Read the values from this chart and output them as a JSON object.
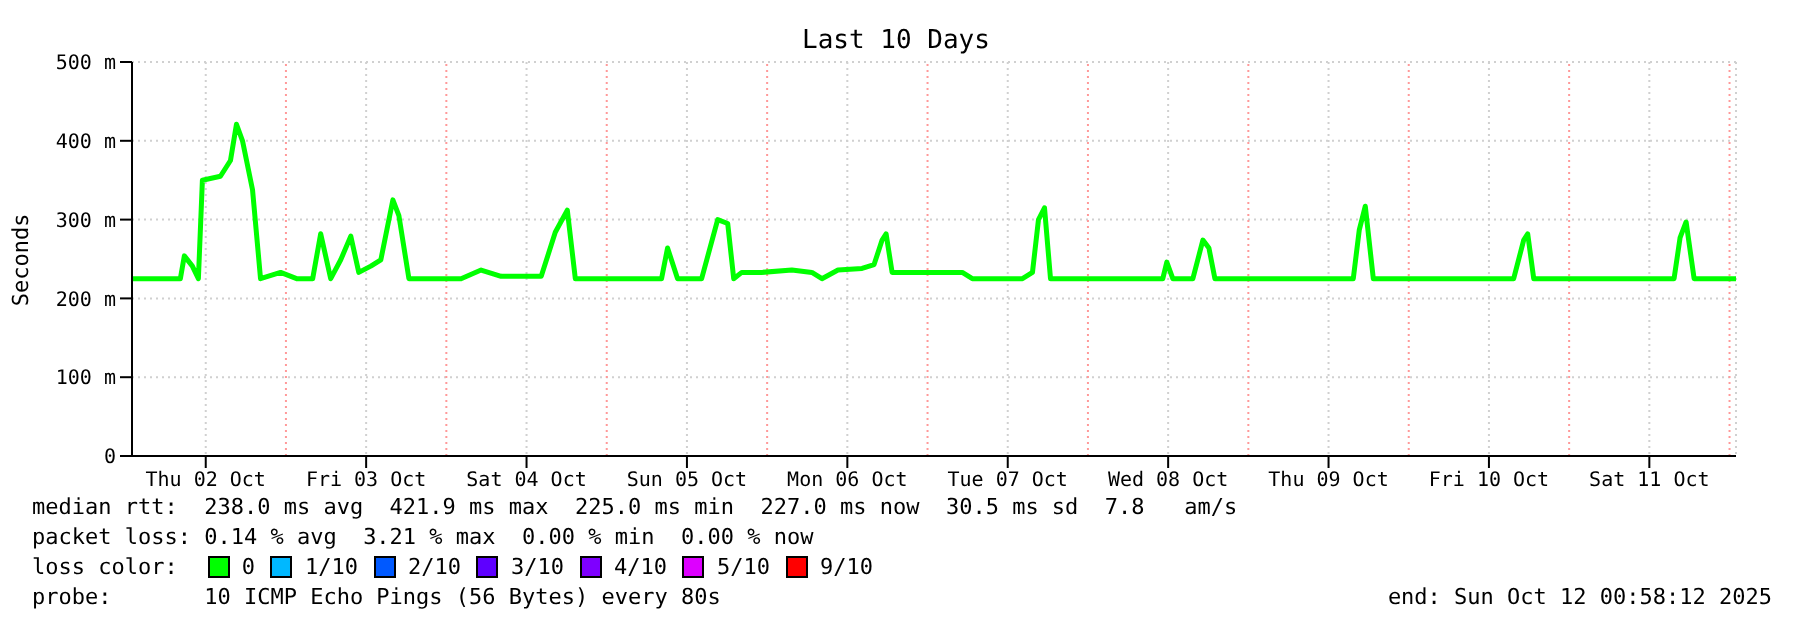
{
  "chart_data": {
    "type": "line",
    "title": "Last 10 Days",
    "ylabel": "Seconds",
    "x": [
      "2025-10-02T00:58",
      "2025-10-02T08:12",
      "2025-10-02T08:48",
      "2025-10-02T10:00",
      "2025-10-02T10:54",
      "2025-10-02T11:30",
      "2025-10-02T14:12",
      "2025-10-02T15:42",
      "2025-10-02T16:36",
      "2025-10-02T17:30",
      "2025-10-02T19:00",
      "2025-10-02T20:12",
      "2025-10-02T23:12",
      "2025-10-03T01:36",
      "2025-10-03T04:00",
      "2025-10-03T05:12",
      "2025-10-03T06:42",
      "2025-10-03T08:12",
      "2025-10-03T09:42",
      "2025-10-03T10:54",
      "2025-10-03T12:42",
      "2025-10-03T14:12",
      "2025-10-03T16:00",
      "2025-10-03T16:54",
      "2025-10-03T18:24",
      "2025-10-04T02:12",
      "2025-10-04T05:12",
      "2025-10-04T08:12",
      "2025-10-04T14:12",
      "2025-10-04T16:18",
      "2025-10-04T18:06",
      "2025-10-04T19:18",
      "2025-10-05T02:12",
      "2025-10-05T08:12",
      "2025-10-05T09:06",
      "2025-10-05T10:36",
      "2025-10-05T14:12",
      "2025-10-05T16:36",
      "2025-10-05T18:06",
      "2025-10-05T19:00",
      "2025-10-05T20:12",
      "2025-10-05T23:12",
      "2025-10-06T03:42",
      "2025-10-06T06:42",
      "2025-10-06T08:12",
      "2025-10-06T10:36",
      "2025-10-06T14:12",
      "2025-10-06T16:00",
      "2025-10-06T17:12",
      "2025-10-06T17:48",
      "2025-10-06T18:42",
      "2025-10-07T05:12",
      "2025-10-07T06:42",
      "2025-10-07T14:12",
      "2025-10-07T15:42",
      "2025-10-07T16:36",
      "2025-10-07T17:30",
      "2025-10-07T18:24",
      "2025-10-08T11:12",
      "2025-10-08T11:48",
      "2025-10-08T12:42",
      "2025-10-08T15:42",
      "2025-10-08T17:12",
      "2025-10-08T18:06",
      "2025-10-08T19:00",
      "2025-10-09T15:42",
      "2025-10-09T16:36",
      "2025-10-09T17:30",
      "2025-10-09T18:42",
      "2025-10-10T15:42",
      "2025-10-10T17:12",
      "2025-10-10T17:48",
      "2025-10-10T18:42",
      "2025-10-11T15:42",
      "2025-10-11T16:36",
      "2025-10-11T17:30",
      "2025-10-11T18:42",
      "2025-10-12T00:58"
    ],
    "series": [
      {
        "color": "#00ff00",
        "values": [
          225,
          225,
          254,
          241,
          225,
          350,
          355,
          375,
          421,
          400,
          338,
          225,
          233,
          225,
          225,
          282,
          225,
          249,
          279,
          233,
          241,
          249,
          325,
          305,
          225,
          225,
          236,
          228,
          228,
          284,
          312,
          225,
          225,
          225,
          264,
          225,
          225,
          300,
          295,
          225,
          233,
          233,
          236,
          233,
          225,
          236,
          238,
          243,
          274,
          282,
          233,
          233,
          225,
          225,
          233,
          300,
          315,
          225,
          225,
          246,
          225,
          225,
          274,
          264,
          225,
          225,
          287,
          317,
          225,
          225,
          274,
          282,
          225,
          225,
          277,
          297,
          225,
          225
        ]
      }
    ],
    "xlim": [
      "2025-10-02T00:58",
      "2025-10-12T00:58"
    ],
    "xticks": [
      {
        "value": "2025-10-02T12:00",
        "label": "Thu 02 Oct"
      },
      {
        "value": "2025-10-03T12:00",
        "label": "Fri 03 Oct"
      },
      {
        "value": "2025-10-04T12:00",
        "label": "Sat 04 Oct"
      },
      {
        "value": "2025-10-05T12:00",
        "label": "Sun 05 Oct"
      },
      {
        "value": "2025-10-06T12:00",
        "label": "Mon 06 Oct"
      },
      {
        "value": "2025-10-07T12:00",
        "label": "Tue 07 Oct"
      },
      {
        "value": "2025-10-08T12:00",
        "label": "Wed 08 Oct"
      },
      {
        "value": "2025-10-09T12:00",
        "label": "Thu 09 Oct"
      },
      {
        "value": "2025-10-10T12:00",
        "label": "Fri 10 Oct"
      },
      {
        "value": "2025-10-11T12:00",
        "label": "Sat 11 Oct"
      }
    ],
    "ylim": [
      0,
      500
    ],
    "yticks": [
      0,
      {
        "value": 100,
        "label": "100 m"
      },
      {
        "value": 200,
        "label": "200 m"
      },
      {
        "value": 300,
        "label": "300 m"
      },
      {
        "value": 400,
        "label": "400 m"
      },
      {
        "value": 500,
        "label": "500 m"
      }
    ],
    "ref_lines": [
      {
        "axis": "x",
        "value": "2025-10-03T00:00",
        "color": "#ff9999",
        "line_style": "dotted"
      },
      {
        "axis": "x",
        "value": "2025-10-04T00:00",
        "color": "#ff9999",
        "line_style": "dotted"
      },
      {
        "axis": "x",
        "value": "2025-10-05T00:00",
        "color": "#ff9999",
        "line_style": "dotted"
      },
      {
        "axis": "x",
        "value": "2025-10-06T00:00",
        "color": "#ff9999",
        "line_style": "dotted"
      },
      {
        "axis": "x",
        "value": "2025-10-07T00:00",
        "color": "#ff9999",
        "line_style": "dotted"
      },
      {
        "axis": "x",
        "value": "2025-10-08T00:00",
        "color": "#ff9999",
        "line_style": "dotted"
      },
      {
        "axis": "x",
        "value": "2025-10-09T00:00",
        "color": "#ff9999",
        "line_style": "dotted"
      },
      {
        "axis": "x",
        "value": "2025-10-10T00:00",
        "color": "#ff9999",
        "line_style": "dotted"
      },
      {
        "axis": "x",
        "value": "2025-10-11T00:00",
        "color": "#ff9999",
        "line_style": "dotted"
      },
      {
        "axis": "x",
        "value": "2025-10-12T00:00",
        "color": "#ff9999",
        "line_style": "dotted"
      }
    ],
    "annotations": [
      "median rtt:  238.0 ms avg  421.9 ms max  225.0 ms min  227.0 ms now  30.5 ms sd  7.8   am/s",
      "packet loss: 0.14 % avg  3.21 % max  0.00 % min  0.00 % now",
      "loss color:",
      "0",
      "1/10",
      "2/10",
      "3/10",
      "4/10",
      "5/10",
      "9/10",
      "probe:       10 ICMP Echo Pings (56 Bytes) every 80s",
      "end: Sun Oct 12 00:58:12 2025"
    ],
    "grid": true,
    "legend": false,
    "marker": "none",
    "line_style": "solid"
  }
}
